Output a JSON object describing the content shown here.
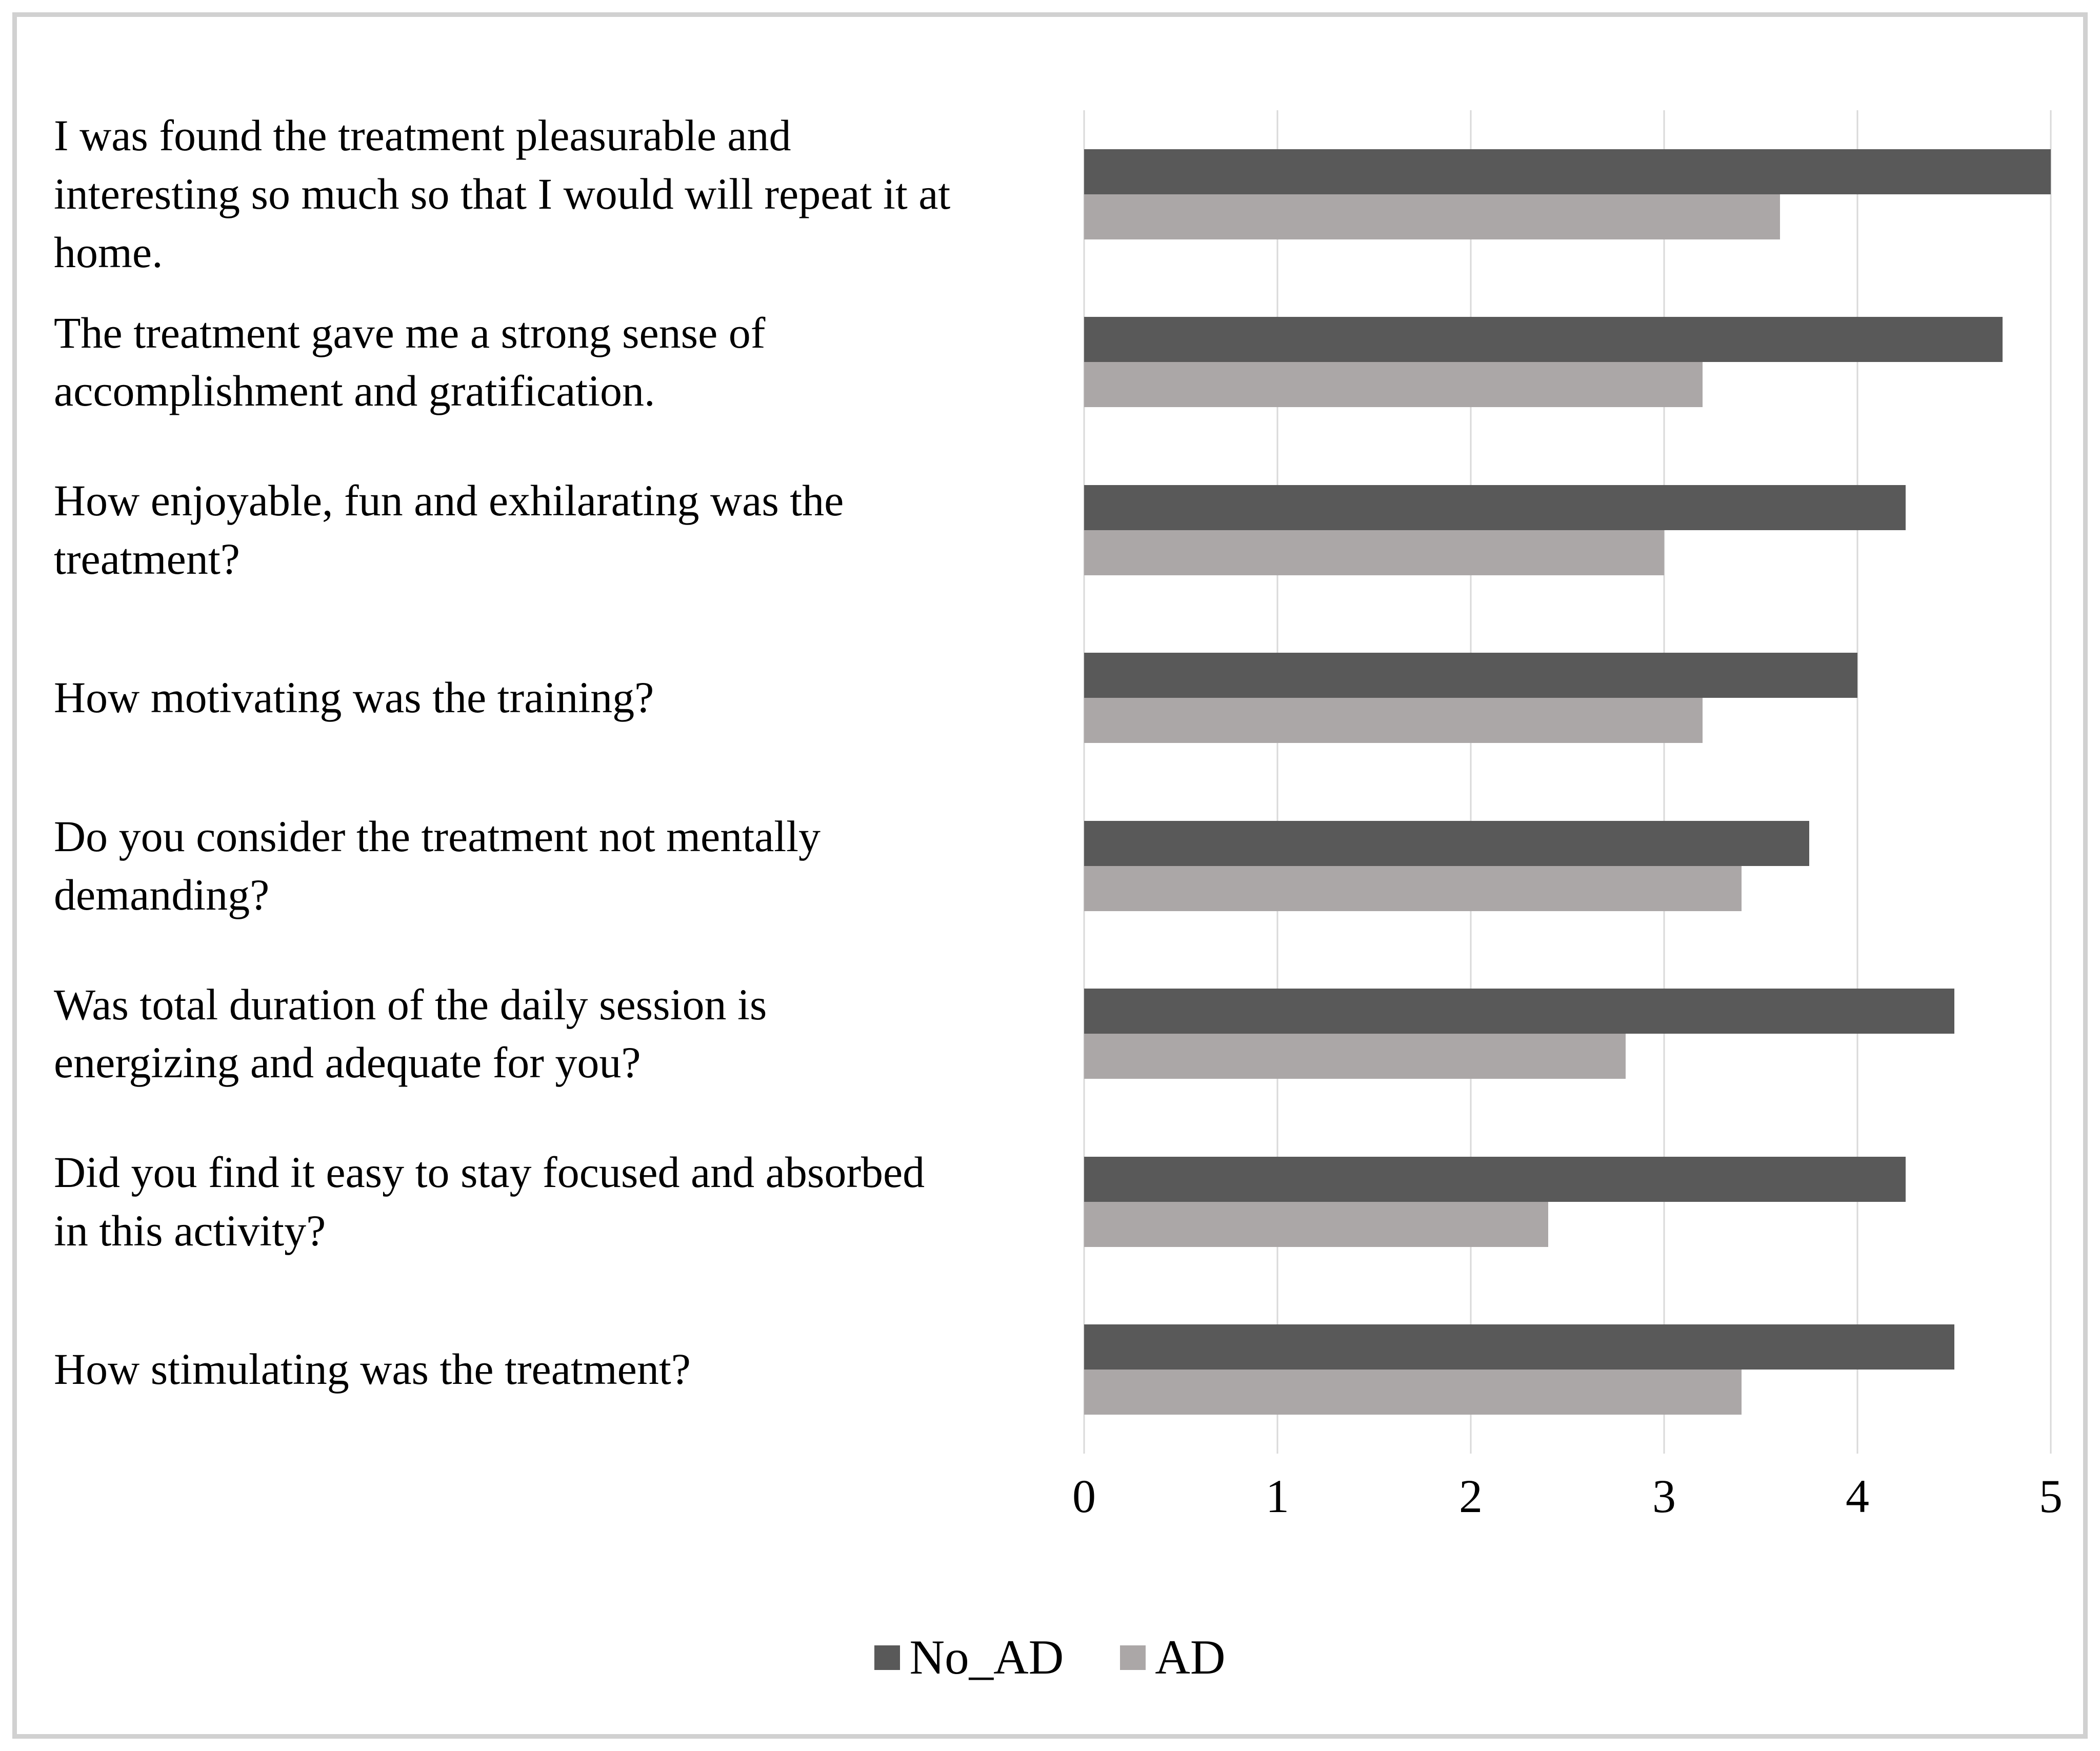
{
  "page": {
    "background": "#ffffff",
    "frame_color": "#d1d1d1"
  },
  "chart_data": {
    "type": "bar",
    "orientation": "horizontal",
    "title": "",
    "xlabel": "",
    "ylabel": "",
    "categories": [
      "I was found the treatment pleasurable and\ninteresting so much so that I would will repeat it at\nhome.",
      "The treatment gave me a strong sense of\naccomplishment and gratification.",
      "How enjoyable, fun and exhilarating was the\ntreatment?",
      "How motivating was the training?",
      "Do you consider the treatment not mentally\ndemanding?",
      "Was total duration of the daily session is\nenergizing and adequate for you?",
      "Did you find it easy to stay focused and absorbed\nin this activity?",
      "How stimulating was the treatment?"
    ],
    "series": [
      {
        "name": "No_AD",
        "color": "#595959",
        "values": [
          5.0,
          4.75,
          4.25,
          4.0,
          3.75,
          4.5,
          4.25,
          4.5
        ]
      },
      {
        "name": "AD",
        "color": "#aba7a7",
        "values": [
          3.6,
          3.2,
          3.0,
          3.2,
          3.4,
          2.8,
          2.4,
          3.4
        ]
      }
    ],
    "xlim": [
      0,
      5
    ],
    "x_ticks": [
      "0",
      "1",
      "2",
      "3",
      "4",
      "5"
    ],
    "grid": true,
    "gridline_color": "#d9d9d9",
    "legend_position": "bottom-center"
  }
}
